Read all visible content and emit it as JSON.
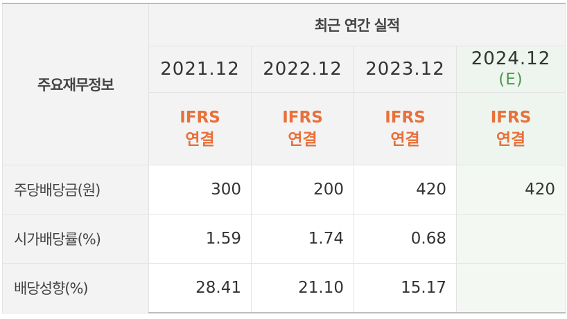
{
  "table": {
    "corner_label": "주요재무정보",
    "group_label": "최근 연간 실적",
    "columns": [
      {
        "year": "2021.12",
        "estimate": "",
        "basis_line1": "IFRS",
        "basis_line2": "연결"
      },
      {
        "year": "2022.12",
        "estimate": "",
        "basis_line1": "IFRS",
        "basis_line2": "연결"
      },
      {
        "year": "2023.12",
        "estimate": "",
        "basis_line1": "IFRS",
        "basis_line2": "연결"
      },
      {
        "year": "2024.12",
        "estimate": "(E)",
        "basis_line1": "IFRS",
        "basis_line2": "연결"
      }
    ],
    "rows": [
      {
        "label": "주당배당금(원)",
        "values": [
          "300",
          "200",
          "420",
          "420"
        ]
      },
      {
        "label": "시가배당률(%)",
        "values": [
          "1.59",
          "1.74",
          "0.68",
          ""
        ]
      },
      {
        "label": "배당성향(%)",
        "values": [
          "28.41",
          "21.10",
          "15.17",
          ""
        ]
      }
    ]
  },
  "colors": {
    "accent_ifrs": "#e8703a",
    "estimate_mark": "#4a9a4a",
    "estimate_background": "#eef5ee",
    "header_background": "#f3f3f3"
  }
}
